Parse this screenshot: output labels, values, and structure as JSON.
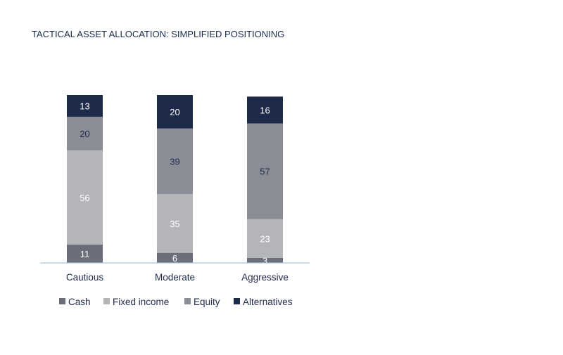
{
  "chart_data": {
    "type": "bar",
    "stacked": true,
    "title": "TACTICAL ASSET ALLOCATION: SIMPLIFIED POSITIONING",
    "categories": [
      "Cautious",
      "Moderate",
      "Aggressive"
    ],
    "series": [
      {
        "name": "Cash",
        "values": [
          11,
          6,
          3
        ],
        "color": "#6b6d78",
        "label_color": "#ffffff"
      },
      {
        "name": "Fixed income",
        "values": [
          56,
          35,
          23
        ],
        "color": "#b4b5b8",
        "label_color": "#ffffff"
      },
      {
        "name": "Equity",
        "values": [
          20,
          39,
          57
        ],
        "color": "#8b8d96",
        "label_color": "#1e2a4a"
      },
      {
        "name": "Alternatives",
        "values": [
          13,
          20,
          16
        ],
        "color": "#1e2a4a",
        "label_color": "#ffffff"
      }
    ],
    "ylim": [
      0,
      100
    ],
    "xlabel": "",
    "ylabel": "",
    "legend_position": "bottom-left",
    "grid": false,
    "axis_color": "#a8c4e0",
    "title_color": "#1e2a4a",
    "text_color": "#1e2a4a"
  }
}
